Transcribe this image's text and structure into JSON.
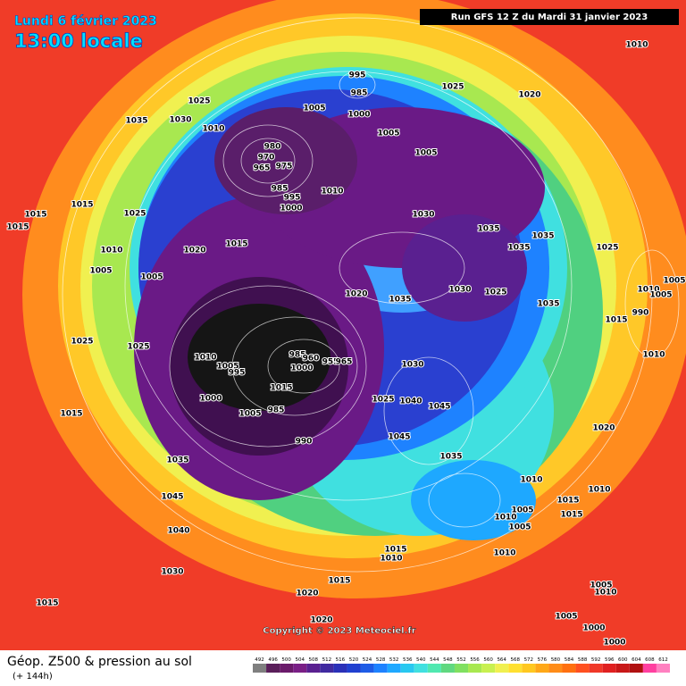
{
  "header": {
    "date": "Lundi 6 février 2023",
    "time": "13:00 locale",
    "run": "Run GFS 12 Z du Mardi 31 janvier 2023"
  },
  "footer": {
    "title": "Géop. Z500 & pression au sol",
    "subtitle": "(+ 144h)",
    "copyright": "Copyright © 2023 Meteociel.fr"
  },
  "legend": {
    "ticks": [
      492,
      496,
      500,
      504,
      508,
      512,
      516,
      520,
      524,
      528,
      532,
      536,
      540,
      544,
      548,
      552,
      556,
      560,
      564,
      568,
      572,
      576,
      580,
      584,
      588,
      592,
      596,
      600,
      604,
      608,
      612
    ],
    "colors": [
      "#7f7f7f",
      "#5a1e5a",
      "#6a1a6a",
      "#7a1f86",
      "#5a2090",
      "#402aa0",
      "#2a30b8",
      "#2040d0",
      "#1e5ce6",
      "#1e82ff",
      "#1ea8ff",
      "#28c8f0",
      "#40e0e0",
      "#50e8b0",
      "#60d880",
      "#80e060",
      "#a8e850",
      "#c8f050",
      "#f0f050",
      "#ffe030",
      "#ffc820",
      "#ffa818",
      "#ff8c18",
      "#ff7010",
      "#ff5020",
      "#f03828",
      "#e02020",
      "#c81818",
      "#b01010",
      "#ff40a0",
      "#ff80c0"
    ]
  },
  "isobar_labels": [
    1010,
    1025,
    1020,
    995,
    985,
    1000,
    1005,
    1025,
    1035,
    1030,
    1010,
    1005,
    1005,
    980,
    970,
    965,
    975,
    985,
    995,
    1000,
    1010,
    1030,
    1035,
    1035,
    1035,
    1025,
    1015,
    1025,
    1015,
    1015,
    1010,
    1020,
    1015,
    1005,
    1005,
    1020,
    1035,
    1030,
    1025,
    1035,
    1015,
    1010,
    1005,
    1005,
    990,
    1025,
    1025,
    1010,
    1005,
    995,
    985,
    960,
    955,
    965,
    1000,
    1015,
    1000,
    1005,
    985,
    990,
    1030,
    1025,
    1040,
    1045,
    1045,
    1035,
    1015,
    1035,
    1010,
    1020,
    1010,
    1010,
    1015,
    1005,
    1015,
    1010,
    1005,
    1010,
    1045,
    1040,
    1030,
    1015,
    1010,
    1015,
    1020,
    1015,
    1020,
    1005,
    1010,
    1005,
    1000,
    1000
  ]
}
